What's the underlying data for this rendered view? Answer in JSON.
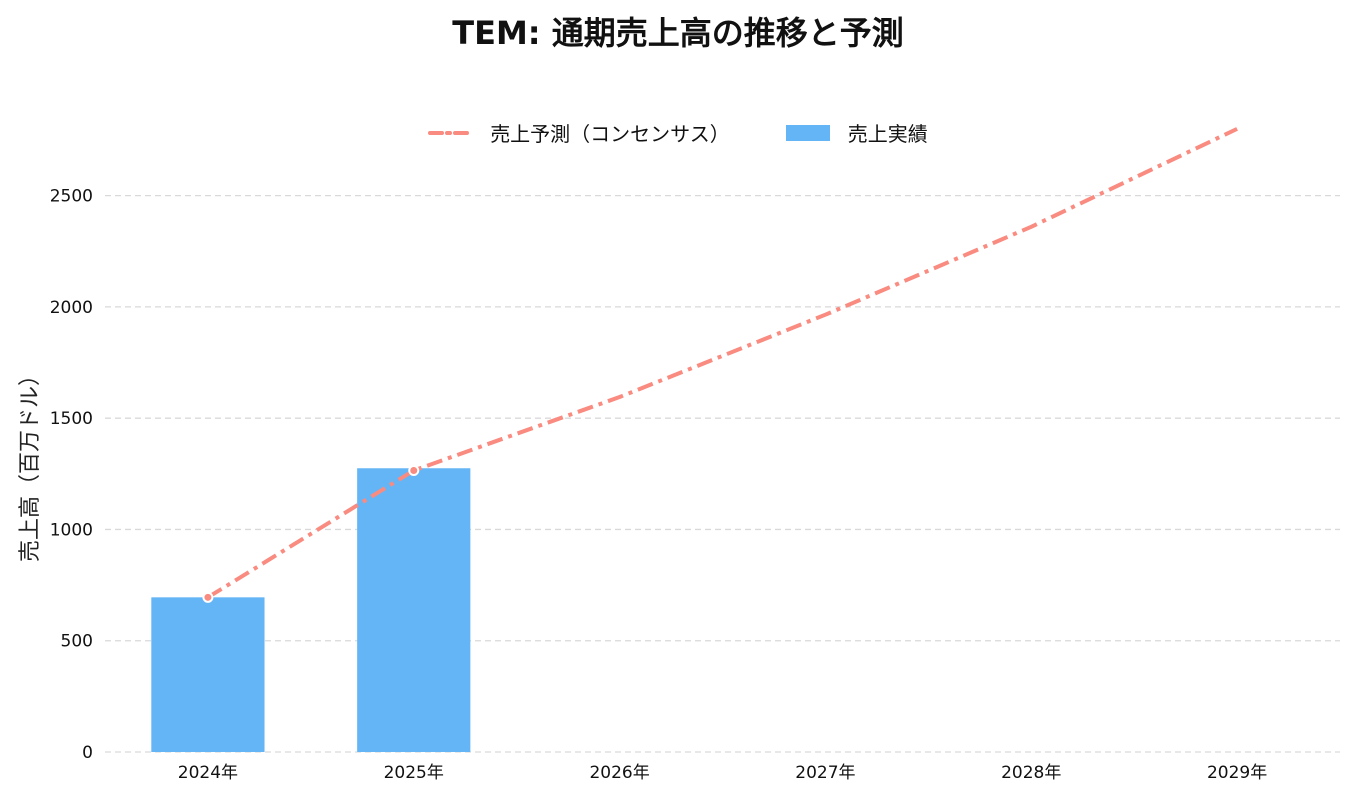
{
  "chart_data": {
    "type": "bar",
    "title": "TEM: 通期売上高の推移と予測",
    "ylabel": "売上高（百万ドル）",
    "xlabel": "",
    "categories": [
      "2024年",
      "2025年",
      "2026年",
      "2027年",
      "2028年",
      "2029年"
    ],
    "ylim": [
      0,
      2750
    ],
    "yticks": [
      0,
      500,
      1000,
      1500,
      2000,
      2500
    ],
    "grid": true,
    "legend_position": "top-center",
    "series": [
      {
        "name": "売上予測（コンセンサス）",
        "type": "line",
        "style": "dash-dot",
        "color": "#f98b80",
        "values": [
          695,
          1265,
          1595,
          1965,
          2360,
          2800
        ]
      },
      {
        "name": "売上実績",
        "type": "bar",
        "color": "#64b5f6",
        "values": [
          695,
          1275,
          null,
          null,
          null,
          null
        ]
      }
    ]
  }
}
